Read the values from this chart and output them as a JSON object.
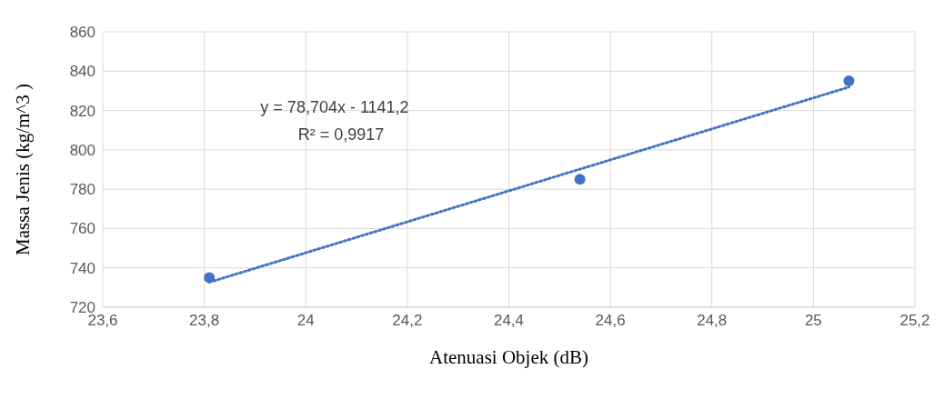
{
  "chart_data": {
    "type": "scatter",
    "xlabel": "Atenuasi Objek (dB)",
    "ylabel": "Massa Jenis (kg/m^3 )",
    "annotations": [
      "y = 78,704x - 1141,2",
      "R² = 0,9917"
    ],
    "series": [
      {
        "color": "#4472c4",
        "x": [
          23.81,
          24.54,
          25.07
        ],
        "values": [
          735,
          785,
          835
        ],
        "marker": "circle"
      },
      {
        "type": "line",
        "color": "#4472c4",
        "x": [
          23.81,
          25.07
        ],
        "values": [
          732.7,
          831.9
        ],
        "marker": "none",
        "line_style": "dotted"
      }
    ],
    "xlim": [
      23.6,
      25.2
    ],
    "xticks": [
      {
        "value": 23.6,
        "label": "23,6"
      },
      {
        "value": 23.8,
        "label": "23,8"
      },
      24,
      {
        "value": 24.2,
        "label": "24,2"
      },
      {
        "value": 24.4,
        "label": "24,4"
      },
      {
        "value": 24.6,
        "label": "24,6"
      },
      {
        "value": 24.8,
        "label": "24,8"
      },
      25,
      {
        "value": 25.2,
        "label": "25,2"
      }
    ],
    "ylim": [
      720,
      860
    ],
    "yticks": [
      720,
      740,
      760,
      780,
      800,
      820,
      840,
      860
    ],
    "grid": true
  }
}
